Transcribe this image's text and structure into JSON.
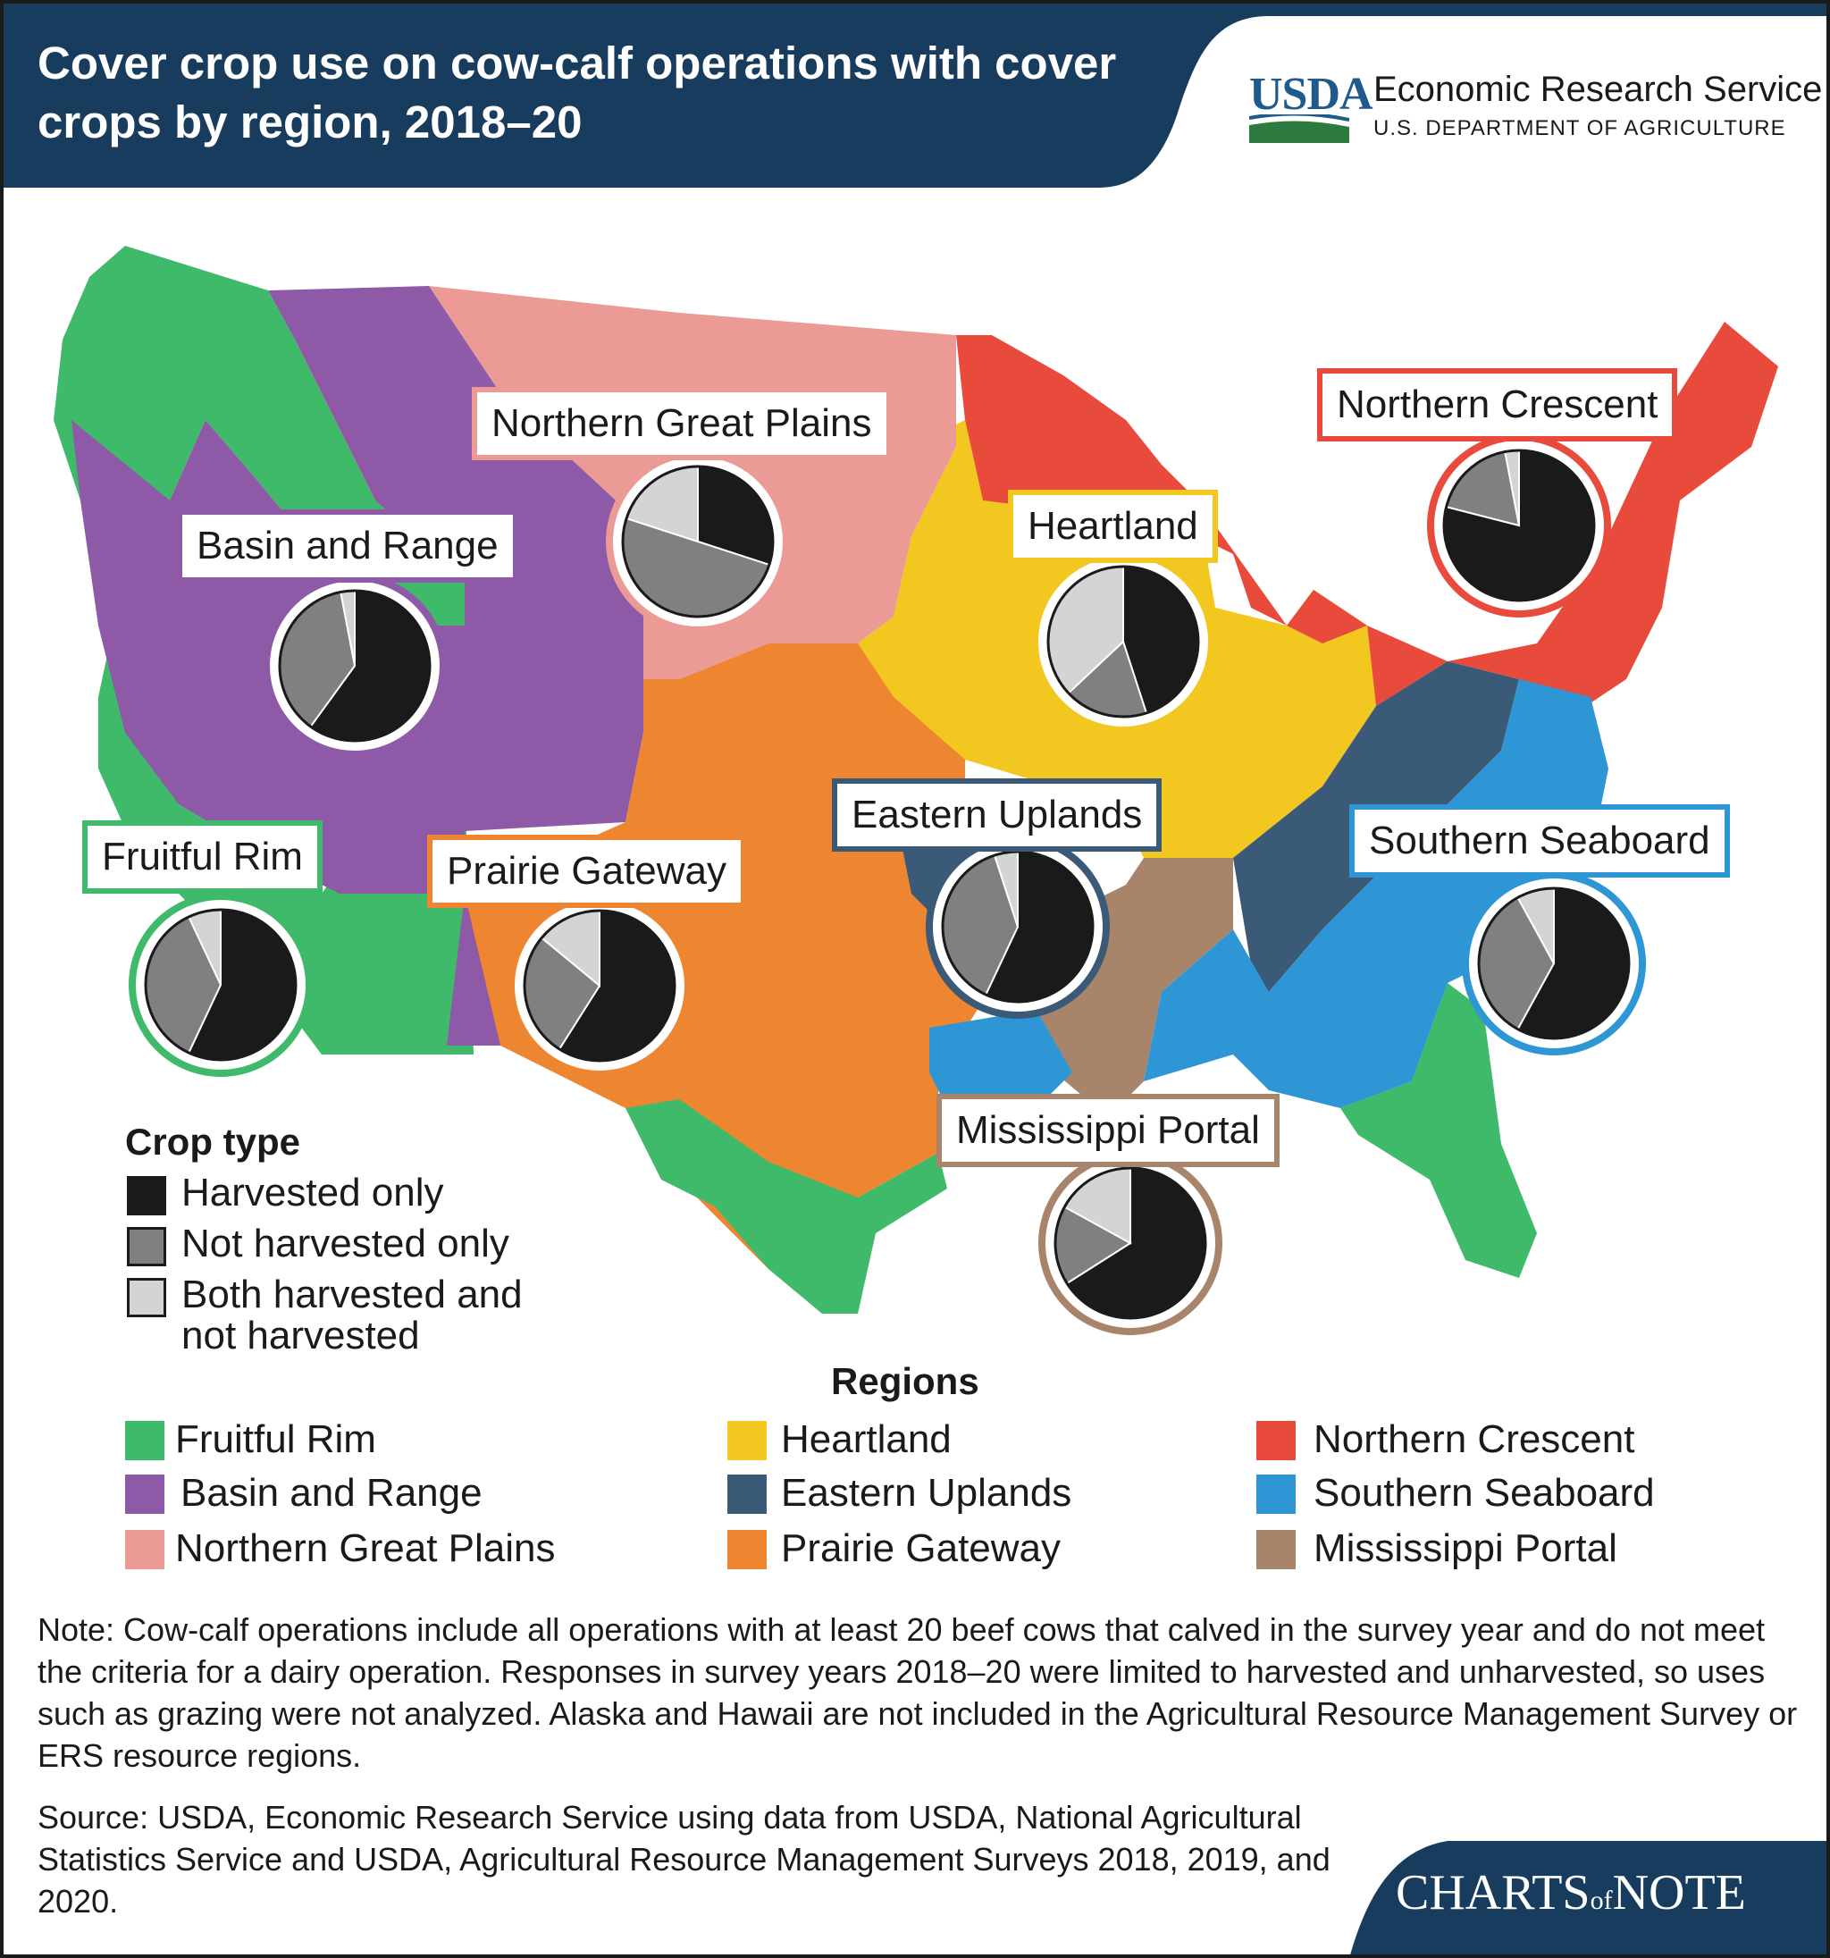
{
  "header": {
    "title": "Cover crop use on cow-calf operations with cover crops by region, 2018–20",
    "usda_mark": "USDA",
    "agency": "Economic Research Service",
    "department": "U.S. DEPARTMENT OF AGRICULTURE"
  },
  "colors": {
    "harvested_only": "#1a1a1a",
    "not_harvested_only": "#808080",
    "both": "#d4d4d4",
    "navy": "#173c5e",
    "fruitful_rim": "#3fb96a",
    "basin_and_range": "#8e5aa7",
    "northern_great_plains": "#ec9a95",
    "heartland": "#f2c71f",
    "eastern_uplands": "#3b5a78",
    "prairie_gateway": "#ee8530",
    "northern_crescent": "#e84a3c",
    "southern_seaboard": "#2f96d6",
    "mississippi_portal": "#a8856a"
  },
  "chart_data": {
    "type": "pie",
    "series_names": [
      "Harvested only",
      "Not harvested only",
      "Both harvested and not harvested"
    ],
    "regions": [
      {
        "name": "Northern Great Plains",
        "values": [
          30,
          50,
          20
        ]
      },
      {
        "name": "Basin and Range",
        "values": [
          60,
          37,
          3
        ]
      },
      {
        "name": "Heartland",
        "values": [
          45,
          18,
          37
        ]
      },
      {
        "name": "Northern Crescent",
        "values": [
          79,
          18,
          3
        ]
      },
      {
        "name": "Eastern Uplands",
        "values": [
          57,
          38,
          5
        ]
      },
      {
        "name": "Southern Seaboard",
        "values": [
          58,
          34,
          8
        ]
      },
      {
        "name": "Fruitful Rim",
        "values": [
          57,
          36,
          7
        ]
      },
      {
        "name": "Prairie Gateway",
        "values": [
          59,
          27,
          14
        ]
      },
      {
        "name": "Mississippi Portal",
        "values": [
          66,
          17,
          17
        ]
      }
    ]
  },
  "legend": {
    "crop_type_title": "Crop type",
    "harvested_only": "Harvested only",
    "not_harvested_only": "Not harvested only",
    "both_line1": "Both harvested and",
    "both_line2": "not harvested"
  },
  "regions_legend": {
    "title": "Regions",
    "items": [
      "Fruitful Rim",
      "Heartland",
      "Northern Crescent",
      "Basin and Range",
      "Eastern Uplands",
      "Southern Seaboard",
      "Northern Great Plains",
      "Prairie Gateway",
      "Mississippi Portal"
    ]
  },
  "labels": {
    "northern_great_plains": "Northern Great Plains",
    "basin_and_range": "Basin and Range",
    "heartland": "Heartland",
    "northern_crescent": "Northern Crescent",
    "eastern_uplands": "Eastern Uplands",
    "southern_seaboard": "Southern Seaboard",
    "fruitful_rim": "Fruitful Rim",
    "prairie_gateway": "Prairie Gateway",
    "mississippi_portal": "Mississippi Portal"
  },
  "footer": {
    "note": "Note: Cow-calf operations include all operations with at least 20 beef cows that calved in the survey year and do not meet the criteria for a dairy operation. Responses in survey years 2018–20 were limited to harvested and unharvested, so uses such as grazing were not analyzed. Alaska and Hawaii are not included in the Agricultural Resource Management Survey or ERS resource regions.",
    "source": "Source: USDA, Economic Research Service using data from USDA, National Agricultural Statistics Service and USDA, Agricultural Resource Management Surveys 2018, 2019, and 2020.",
    "charts_of_note_1": "CHARTS",
    "charts_of_note_of": "of",
    "charts_of_note_2": "NOTE"
  }
}
